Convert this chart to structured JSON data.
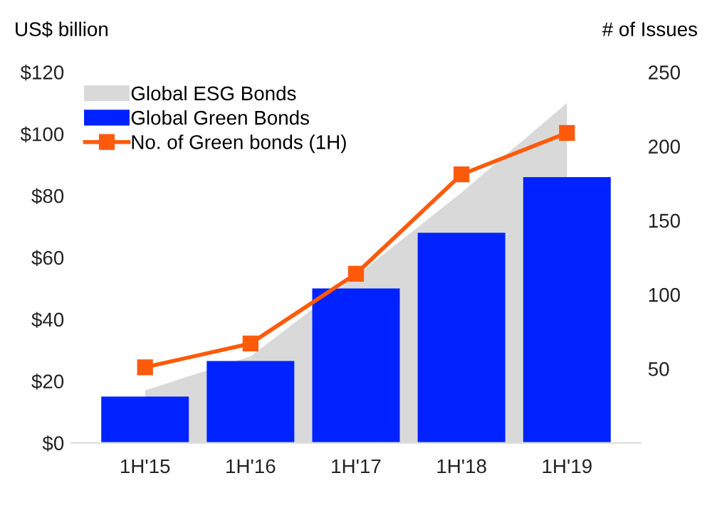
{
  "chart_data": {
    "type": "bar",
    "ylabel": "US$ billion",
    "y2label": "# of Issues",
    "categories": [
      "1H'15",
      "1H'16",
      "1H'17",
      "1H'18",
      "1H'19"
    ],
    "series": [
      {
        "name": "Global ESG Bonds",
        "type": "area",
        "color": "#d9d9d9",
        "values": [
          17,
          28,
          54,
          81,
          110
        ]
      },
      {
        "name": "Global Green Bonds",
        "color": "#0022ff",
        "values": [
          15,
          26.5,
          50,
          68,
          86
        ]
      },
      {
        "name": "No. of Green bonds (1H)",
        "type": "line",
        "color": "#ff5a0a",
        "axis": "y2",
        "marker": "square",
        "values": [
          51,
          67,
          114,
          181,
          209
        ]
      }
    ],
    "ylim": [
      0,
      120
    ],
    "yticks": [
      {
        "value": 0,
        "label": "$0"
      },
      {
        "value": 20,
        "label": "$20"
      },
      {
        "value": 40,
        "label": "$40"
      },
      {
        "value": 60,
        "label": "$60"
      },
      {
        "value": 80,
        "label": "$80"
      },
      {
        "value": 100,
        "label": "$100"
      },
      {
        "value": 120,
        "label": "$120"
      }
    ],
    "y2lim": [
      0,
      250
    ],
    "y2ticks": [
      50,
      100,
      150,
      200,
      250
    ],
    "legend": "top left",
    "grid": false
  }
}
